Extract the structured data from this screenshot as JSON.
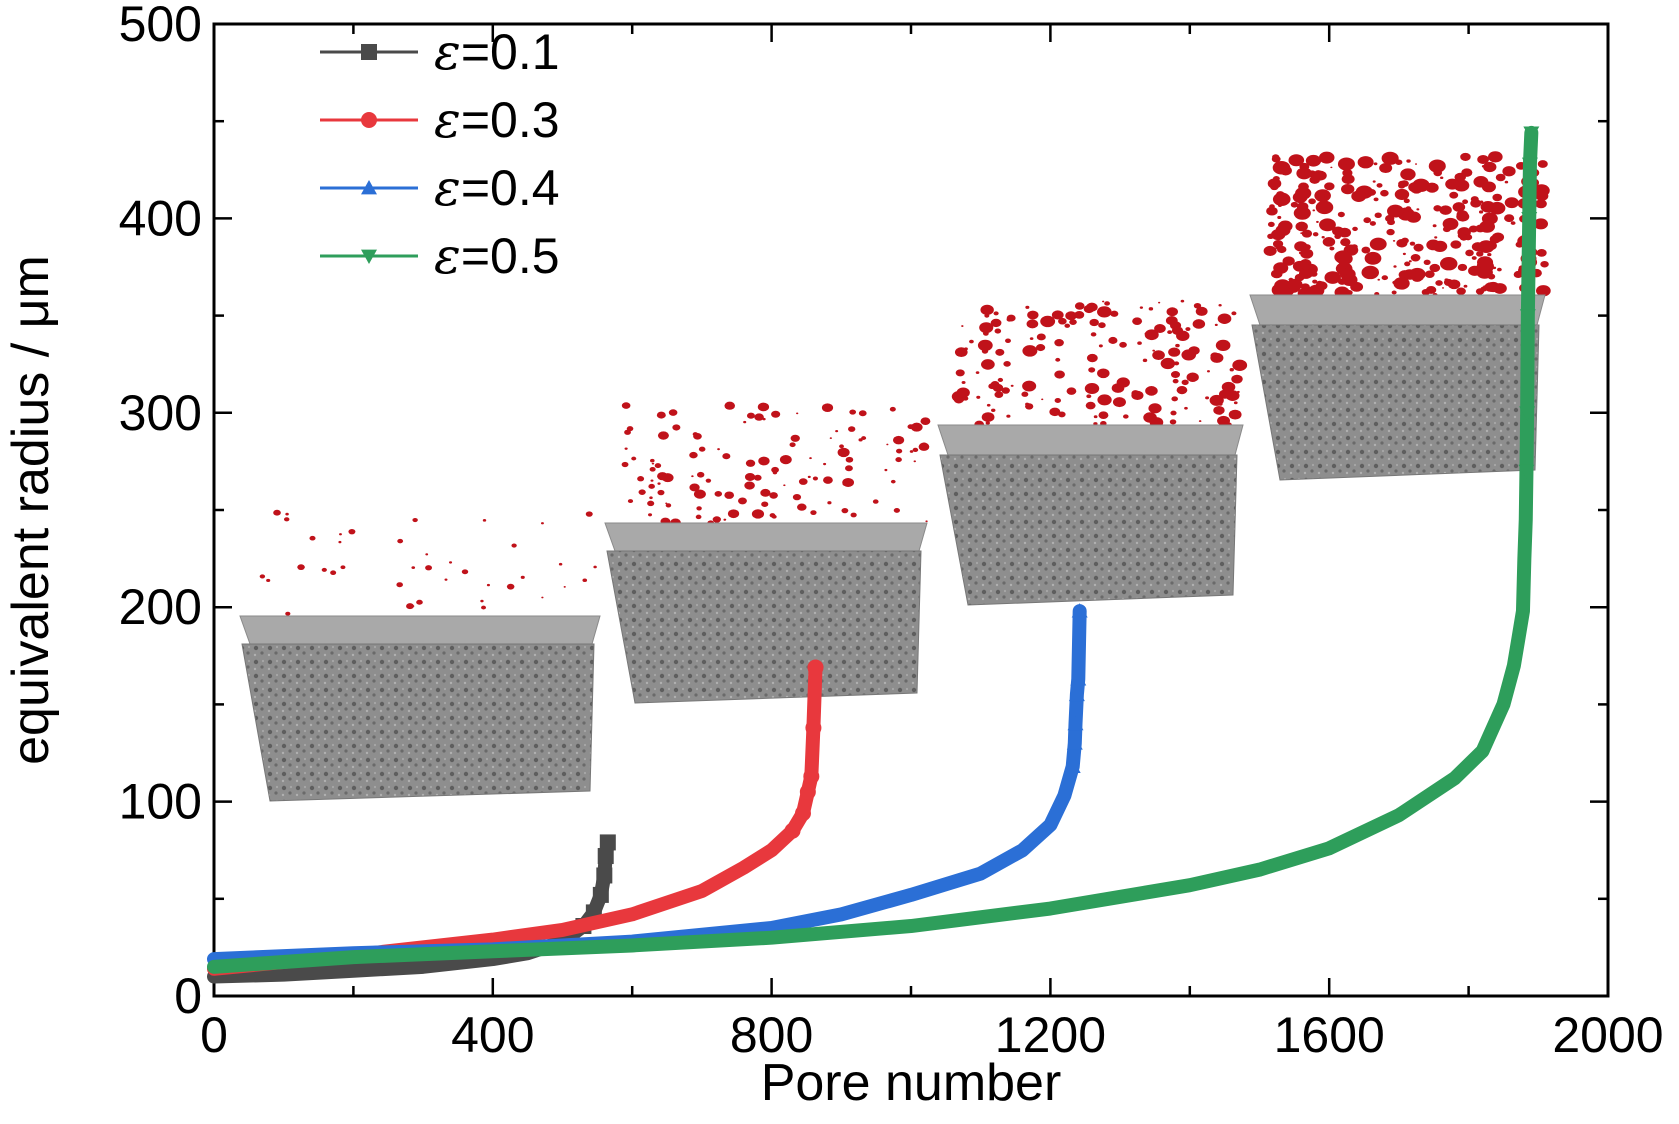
{
  "chart_data": {
    "type": "line",
    "title": "",
    "xlabel": "Pore number",
    "ylabel": "equivalent radius / μm",
    "xlim": [
      0,
      2000
    ],
    "ylim": [
      0,
      500
    ],
    "xticks": [
      "0",
      "400",
      "800",
      "1200",
      "1600",
      "2000"
    ],
    "yticks": [
      "0",
      "100",
      "200",
      "300",
      "400",
      "500"
    ],
    "grid": false,
    "legend_position": "top-left",
    "series": [
      {
        "name": "ε=0.1",
        "symbol": "ε",
        "value_label": "=0.1",
        "color": "#4a4a4a",
        "marker": "square",
        "points": [
          [
            0,
            10
          ],
          [
            100,
            11
          ],
          [
            200,
            13
          ],
          [
            300,
            15
          ],
          [
            400,
            19
          ],
          [
            450,
            22
          ],
          [
            500,
            28
          ],
          [
            530,
            36
          ],
          [
            545,
            43
          ],
          [
            555,
            52
          ],
          [
            560,
            62
          ],
          [
            562,
            72
          ],
          [
            565,
            79
          ]
        ]
      },
      {
        "name": "ε=0.3",
        "symbol": "ε",
        "value_label": "=0.3",
        "color": "#e8383d",
        "marker": "circle",
        "points": [
          [
            0,
            14
          ],
          [
            200,
            21
          ],
          [
            400,
            29
          ],
          [
            500,
            34
          ],
          [
            600,
            42
          ],
          [
            700,
            54
          ],
          [
            760,
            66
          ],
          [
            800,
            75
          ],
          [
            830,
            85
          ],
          [
            845,
            94
          ],
          [
            852,
            105
          ],
          [
            857,
            113
          ],
          [
            860,
            138
          ],
          [
            863,
            169
          ]
        ]
      },
      {
        "name": "ε=0.4",
        "symbol": "ε",
        "value_label": "=0.4",
        "color": "#2b6fd6",
        "marker": "triangle-up",
        "points": [
          [
            0,
            19
          ],
          [
            200,
            22
          ],
          [
            400,
            24
          ],
          [
            600,
            28
          ],
          [
            800,
            35
          ],
          [
            900,
            42
          ],
          [
            1000,
            52
          ],
          [
            1100,
            63
          ],
          [
            1160,
            75
          ],
          [
            1200,
            88
          ],
          [
            1220,
            103
          ],
          [
            1232,
            118
          ],
          [
            1235,
            130
          ],
          [
            1236,
            140
          ],
          [
            1238,
            155
          ],
          [
            1240,
            163
          ],
          [
            1242,
            198
          ]
        ]
      },
      {
        "name": "ε=0.5",
        "symbol": "ε",
        "value_label": "=0.5",
        "color": "#2e9e5b",
        "marker": "triangle-down",
        "points": [
          [
            0,
            15
          ],
          [
            200,
            20
          ],
          [
            400,
            23
          ],
          [
            600,
            26
          ],
          [
            800,
            30
          ],
          [
            1000,
            36
          ],
          [
            1200,
            45
          ],
          [
            1400,
            57
          ],
          [
            1500,
            65
          ],
          [
            1600,
            76
          ],
          [
            1700,
            93
          ],
          [
            1780,
            112
          ],
          [
            1820,
            126
          ],
          [
            1850,
            150
          ],
          [
            1865,
            170
          ],
          [
            1872,
            185
          ],
          [
            1878,
            198
          ],
          [
            1880,
            225
          ],
          [
            1882,
            245
          ],
          [
            1883,
            270
          ],
          [
            1884,
            300
          ],
          [
            1885,
            350
          ],
          [
            1887,
            400
          ],
          [
            1888,
            428
          ],
          [
            1890,
            444
          ]
        ]
      }
    ]
  }
}
